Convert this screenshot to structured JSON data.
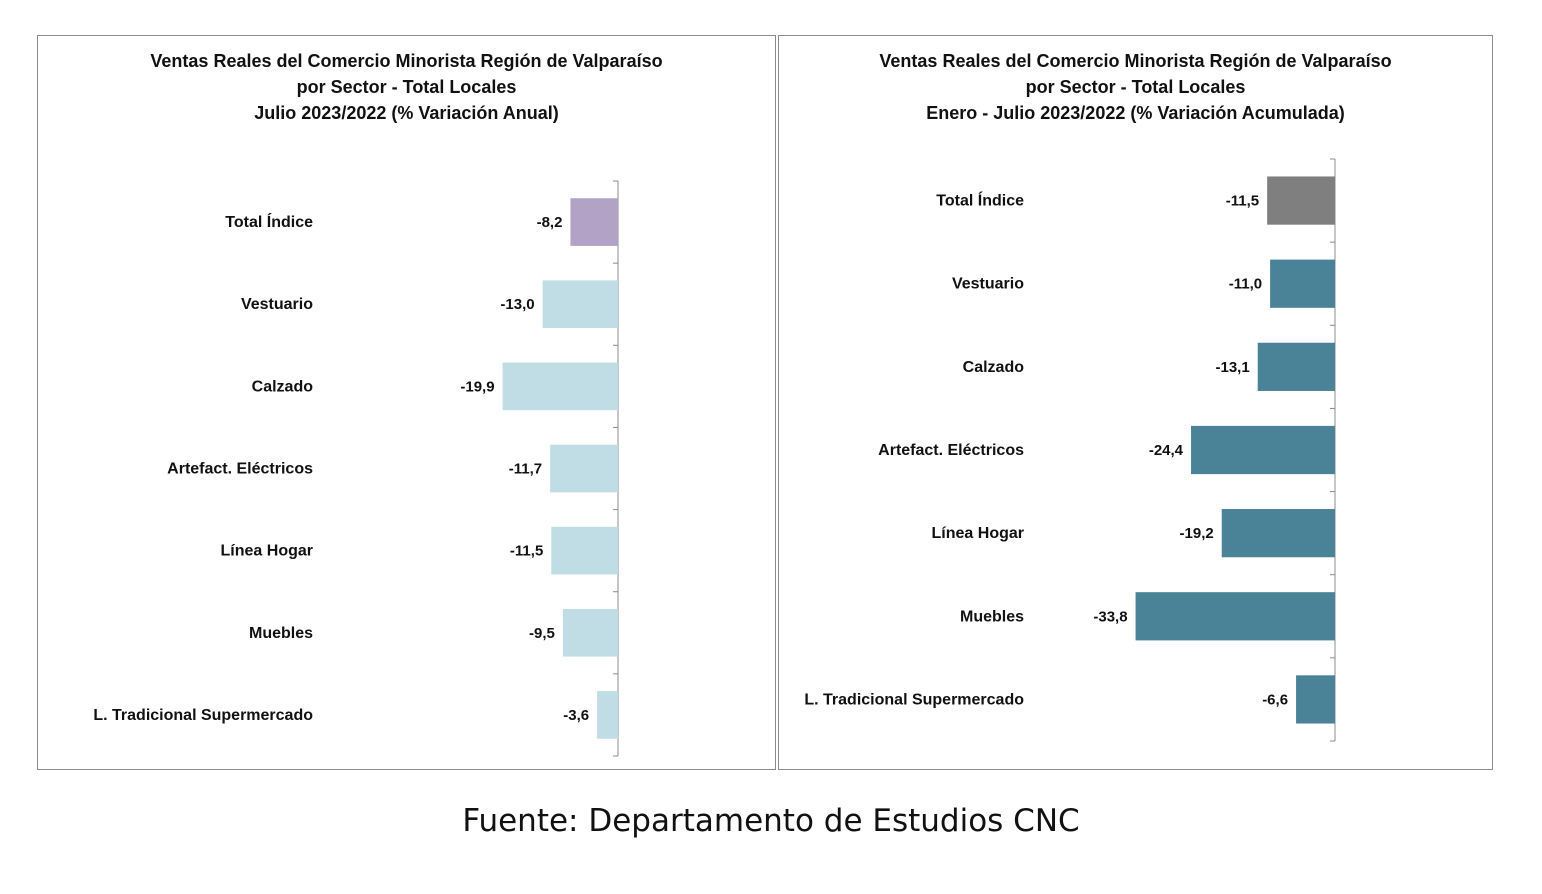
{
  "chart_data": [
    {
      "type": "bar",
      "orientation": "horizontal",
      "title": [
        "Ventas Reales del Comercio Minorista Región de Valparaíso",
        "por Sector - Total Locales",
        "Julio 2023/2022 (% Variación Anual)"
      ],
      "categories": [
        "Total Índice",
        "Vestuario",
        "Calzado",
        "Artefact. Eléctricos",
        "Línea Hogar",
        "Muebles",
        "L. Tradicional Supermercado"
      ],
      "values": [
        -8.2,
        -13.0,
        -19.9,
        -11.7,
        -11.5,
        -9.5,
        -3.6
      ],
      "value_labels": [
        "-8,2",
        "-13,0",
        "-19,9",
        "-11,7",
        "-11,5",
        "-9,5",
        "-3,6"
      ],
      "colors": [
        "#b1a2c6",
        "#c0dde6",
        "#c0dde6",
        "#c0dde6",
        "#c0dde6",
        "#c0dde6",
        "#c0dde6"
      ],
      "xlim": [
        -20,
        0
      ],
      "xlabel": "",
      "ylabel": ""
    },
    {
      "type": "bar",
      "orientation": "horizontal",
      "title": [
        "Ventas Reales del Comercio Minorista Región de Valparaíso",
        "por Sector  - Total Locales",
        "Enero - Julio 2023/2022 (% Variación Acumulada)"
      ],
      "categories": [
        "Total Índice",
        "Vestuario",
        "Calzado",
        "Artefact. Eléctricos",
        "Línea Hogar",
        "Muebles",
        "L. Tradicional Supermercado"
      ],
      "values": [
        -11.5,
        -11.0,
        -13.1,
        -24.4,
        -19.2,
        -33.8,
        -6.6
      ],
      "value_labels": [
        "-11,5",
        "-11,0",
        "-13,1",
        "-24,4",
        "-19,2",
        "-33,8",
        "-6,6"
      ],
      "colors": [
        "#7f7f7f",
        "#4a8398",
        "#4a8398",
        "#4a8398",
        "#4a8398",
        "#4a8398",
        "#4a8398"
      ],
      "xlim": [
        -35,
        0
      ],
      "xlabel": "",
      "ylabel": ""
    }
  ],
  "footer": {
    "source": "Fuente: Departamento de Estudios CNC"
  }
}
